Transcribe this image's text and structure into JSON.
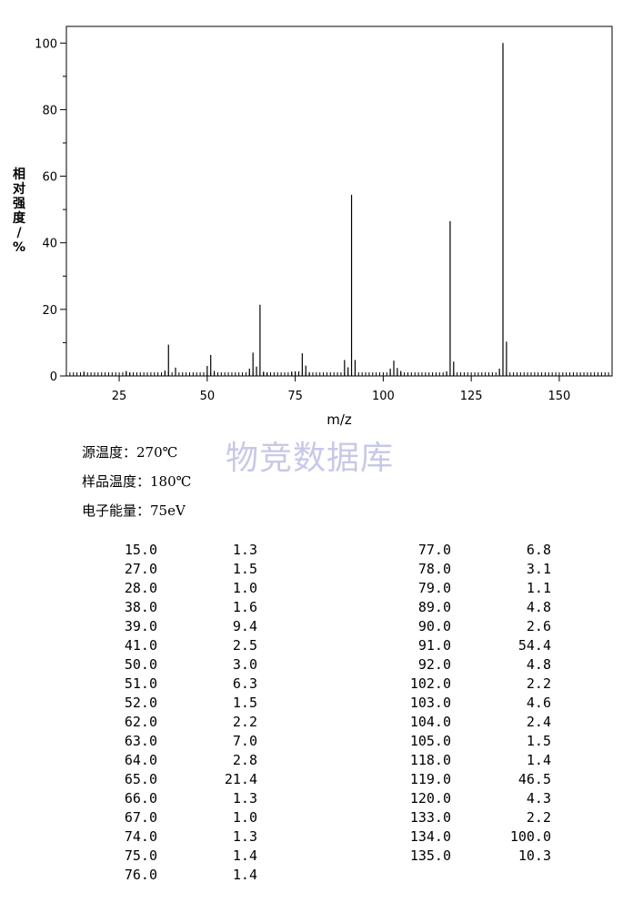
{
  "chart_data": {
    "type": "bar",
    "xlabel": "m/z",
    "ylabel": "相对强度/%",
    "xlim": [
      10,
      165
    ],
    "ylim": [
      0,
      105
    ],
    "xticks": [
      25,
      50,
      75,
      100,
      125,
      150
    ],
    "yticks": [
      0,
      20,
      40,
      60,
      80,
      100
    ],
    "grid": false,
    "peaks": [
      {
        "mz": 15.0,
        "intensity": 1.3
      },
      {
        "mz": 27.0,
        "intensity": 1.5
      },
      {
        "mz": 28.0,
        "intensity": 1.0
      },
      {
        "mz": 38.0,
        "intensity": 1.6
      },
      {
        "mz": 39.0,
        "intensity": 9.4
      },
      {
        "mz": 41.0,
        "intensity": 2.5
      },
      {
        "mz": 50.0,
        "intensity": 3.0
      },
      {
        "mz": 51.0,
        "intensity": 6.3
      },
      {
        "mz": 52.0,
        "intensity": 1.5
      },
      {
        "mz": 62.0,
        "intensity": 2.2
      },
      {
        "mz": 63.0,
        "intensity": 7.0
      },
      {
        "mz": 64.0,
        "intensity": 2.8
      },
      {
        "mz": 65.0,
        "intensity": 21.4
      },
      {
        "mz": 66.0,
        "intensity": 1.3
      },
      {
        "mz": 67.0,
        "intensity": 1.0
      },
      {
        "mz": 74.0,
        "intensity": 1.3
      },
      {
        "mz": 75.0,
        "intensity": 1.4
      },
      {
        "mz": 76.0,
        "intensity": 1.4
      },
      {
        "mz": 77.0,
        "intensity": 6.8
      },
      {
        "mz": 78.0,
        "intensity": 3.1
      },
      {
        "mz": 79.0,
        "intensity": 1.1
      },
      {
        "mz": 89.0,
        "intensity": 4.8
      },
      {
        "mz": 90.0,
        "intensity": 2.6
      },
      {
        "mz": 91.0,
        "intensity": 54.4
      },
      {
        "mz": 92.0,
        "intensity": 4.8
      },
      {
        "mz": 102.0,
        "intensity": 2.2
      },
      {
        "mz": 103.0,
        "intensity": 4.6
      },
      {
        "mz": 104.0,
        "intensity": 2.4
      },
      {
        "mz": 105.0,
        "intensity": 1.5
      },
      {
        "mz": 118.0,
        "intensity": 1.4
      },
      {
        "mz": 119.0,
        "intensity": 46.5
      },
      {
        "mz": 120.0,
        "intensity": 4.3
      },
      {
        "mz": 133.0,
        "intensity": 2.2
      },
      {
        "mz": 134.0,
        "intensity": 100.0
      },
      {
        "mz": 135.0,
        "intensity": 10.3
      }
    ]
  },
  "watermark": "物竞数据库",
  "conditions": {
    "source_temp": "源温度：270℃",
    "sample_temp": "样品温度：180℃",
    "electron_energy": "电子能量：75eV"
  },
  "table": {
    "left": [
      [
        "15.0",
        "1.3"
      ],
      [
        "27.0",
        "1.5"
      ],
      [
        "28.0",
        "1.0"
      ],
      [
        "38.0",
        "1.6"
      ],
      [
        "39.0",
        "9.4"
      ],
      [
        "41.0",
        "2.5"
      ],
      [
        "50.0",
        "3.0"
      ],
      [
        "51.0",
        "6.3"
      ],
      [
        "52.0",
        "1.5"
      ],
      [
        "62.0",
        "2.2"
      ],
      [
        "63.0",
        "7.0"
      ],
      [
        "64.0",
        "2.8"
      ],
      [
        "65.0",
        "21.4"
      ],
      [
        "66.0",
        "1.3"
      ],
      [
        "67.0",
        "1.0"
      ],
      [
        "74.0",
        "1.3"
      ],
      [
        "75.0",
        "1.4"
      ],
      [
        "76.0",
        "1.4"
      ]
    ],
    "right": [
      [
        "77.0",
        "6.8"
      ],
      [
        "78.0",
        "3.1"
      ],
      [
        "79.0",
        "1.1"
      ],
      [
        "89.0",
        "4.8"
      ],
      [
        "90.0",
        "2.6"
      ],
      [
        "91.0",
        "54.4"
      ],
      [
        "92.0",
        "4.8"
      ],
      [
        "102.0",
        "2.2"
      ],
      [
        "103.0",
        "4.6"
      ],
      [
        "104.0",
        "2.4"
      ],
      [
        "105.0",
        "1.5"
      ],
      [
        "118.0",
        "1.4"
      ],
      [
        "119.0",
        "46.5"
      ],
      [
        "120.0",
        "4.3"
      ],
      [
        "133.0",
        "2.2"
      ],
      [
        "134.0",
        "100.0"
      ],
      [
        "135.0",
        "10.3"
      ]
    ]
  }
}
